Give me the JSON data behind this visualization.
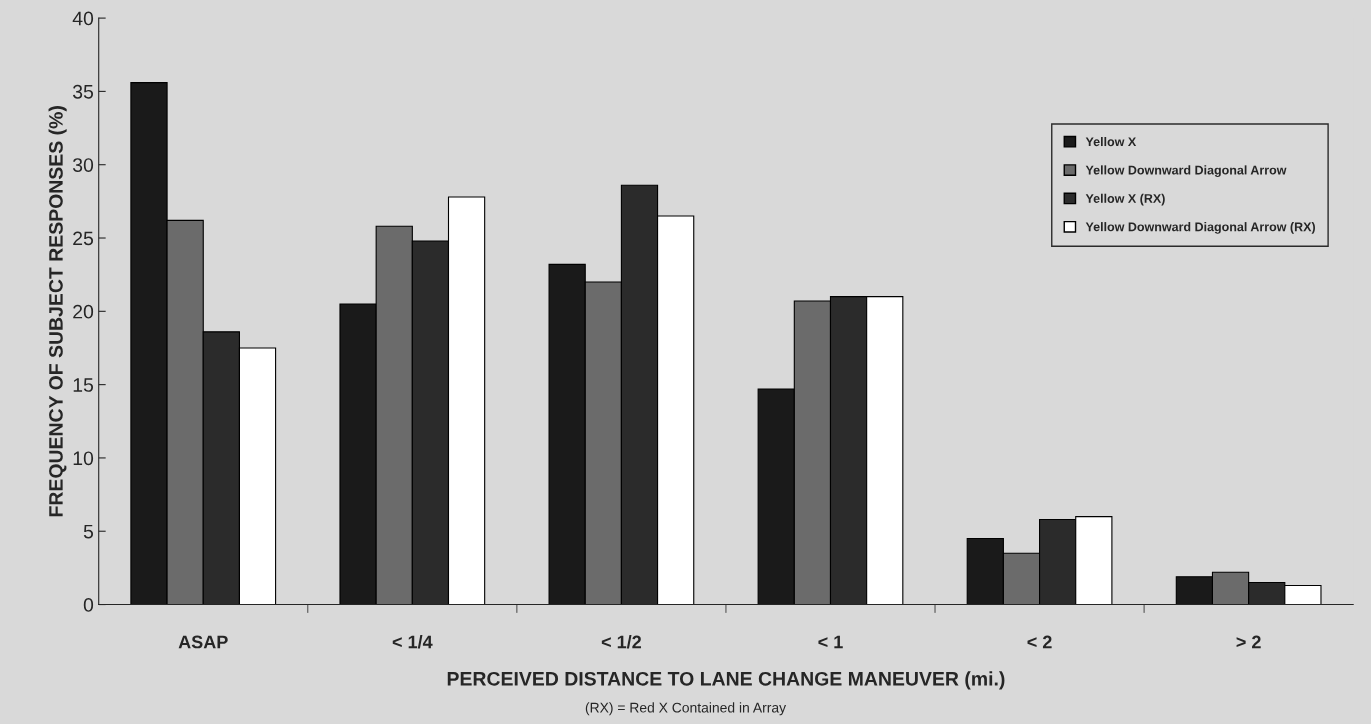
{
  "chart_data": {
    "type": "bar",
    "xlabel": "PERCEIVED DISTANCE TO LANE CHANGE MANEUVER (mi.)",
    "ylabel": "FREQUENCY OF SUBJECT RESPONSES (%)",
    "categories": [
      "ASAP",
      "< 1/4",
      "< 1/2",
      "< 1",
      "< 2",
      "> 2"
    ],
    "series": [
      {
        "name": "Yellow X",
        "color": "#1a1a1a",
        "values": [
          35.6,
          20.5,
          23.2,
          14.7,
          4.5,
          1.9
        ]
      },
      {
        "name": "Yellow Downward Diagonal Arrow",
        "color": "#6b6b6b",
        "values": [
          26.2,
          25.8,
          22.0,
          20.7,
          3.5,
          2.2
        ]
      },
      {
        "name": "Yellow X (RX)",
        "color": "#2b2b2b",
        "values": [
          18.6,
          24.8,
          28.6,
          21.0,
          5.8,
          1.5
        ]
      },
      {
        "name": "Yellow Downward Diagonal Arrow (RX)",
        "color": "#ffffff",
        "values": [
          17.5,
          27.8,
          26.5,
          21.0,
          6.0,
          1.3
        ]
      }
    ],
    "ylim": [
      0,
      40
    ],
    "yticks": [
      0,
      5,
      10,
      15,
      20,
      25,
      30,
      35,
      40
    ],
    "annotations": [
      "(RX) = Red X Contained in Array"
    ],
    "legend": "top right",
    "grid": false
  }
}
